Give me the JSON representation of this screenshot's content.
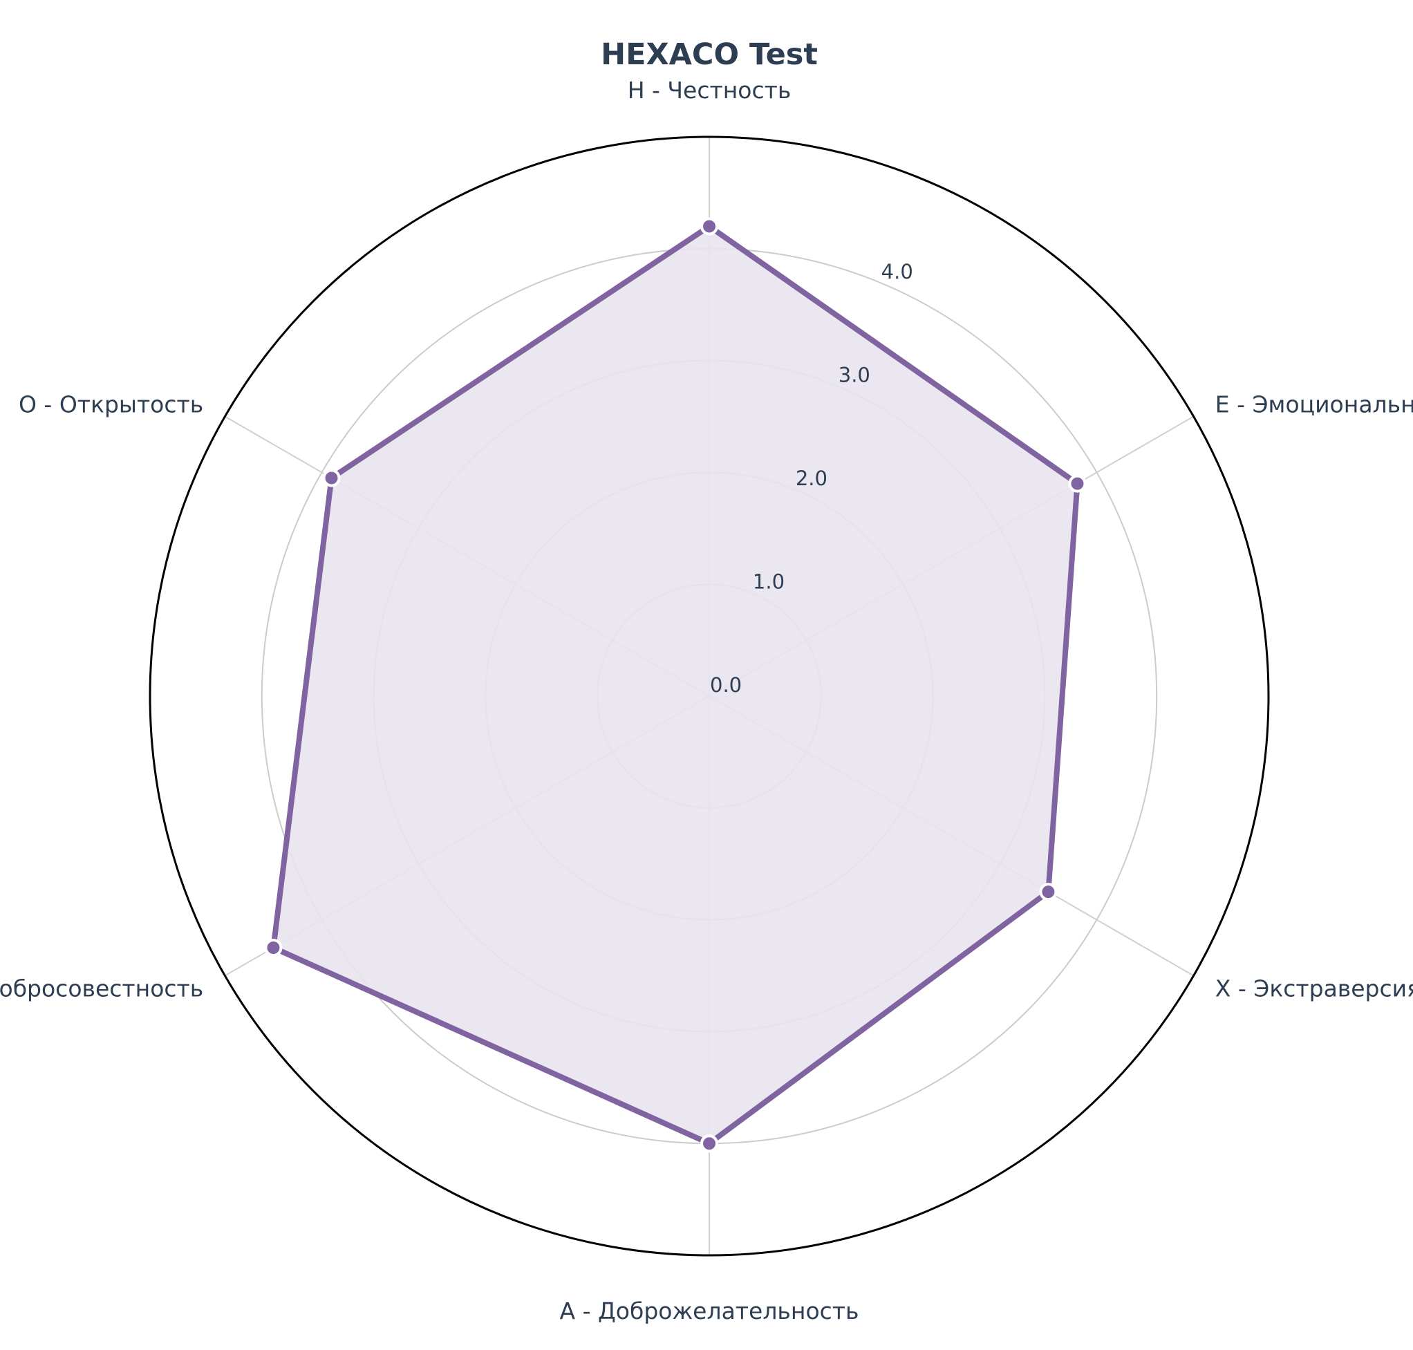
{
  "chart_data": {
    "type": "radar",
    "title": "HEXACO Test",
    "categories": [
      "H - Честность",
      "E - Эмоциональность",
      "X - Экстраверсия",
      "A - Доброжелательность",
      "C - Добросовестность",
      "O - Открытость"
    ],
    "series": [
      {
        "name": "HEXACO Test",
        "values": [
          4.2,
          3.8,
          3.5,
          4.0,
          4.5,
          3.9
        ]
      }
    ],
    "rlim": [
      0,
      5
    ],
    "rticks": [
      0,
      1,
      2,
      3,
      4
    ],
    "rtick_labels": [
      "0.0",
      "1.0",
      "2.0",
      "3.0",
      "4.0"
    ],
    "grid": true,
    "colors": {
      "series_line": "#8064a2",
      "series_fill": "#e9e4f0",
      "marker_edge": "#ffffff",
      "text": "#2e3e52",
      "grid": "#cccccc",
      "frame": "#000000"
    }
  }
}
